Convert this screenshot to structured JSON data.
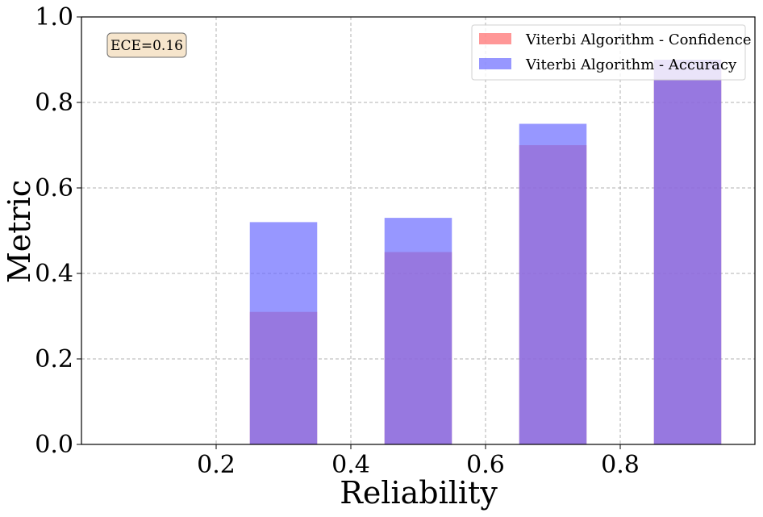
{
  "chart_data": {
    "type": "bar",
    "xlabel": "Reliability",
    "ylabel": "Metric",
    "xlim": [
      0.0,
      1.0
    ],
    "ylim": [
      0.0,
      1.0
    ],
    "xticks": [
      "0.2",
      "0.4",
      "0.6",
      "0.8"
    ],
    "xtick_values": [
      0.2,
      0.4,
      0.6,
      0.8
    ],
    "yticks": [
      "0.0",
      "0.2",
      "0.4",
      "0.6",
      "0.8",
      "1.0"
    ],
    "ytick_values": [
      0.0,
      0.2,
      0.4,
      0.6,
      0.8,
      1.0
    ],
    "grid": true,
    "legend_position": "top-right",
    "bin_centers": [
      0.3,
      0.5,
      0.7,
      0.9
    ],
    "bin_width": 0.1,
    "series": [
      {
        "name": "Viterbi Algorithm - Confidence",
        "color": "#ff6b6b",
        "values": [
          0.31,
          0.45,
          0.7,
          0.9
        ]
      },
      {
        "name": "Viterbi Algorithm - Accuracy",
        "color": "#6b6bff",
        "values": [
          0.52,
          0.53,
          0.75,
          0.9
        ]
      }
    ],
    "annotation": "ECE=0.16"
  }
}
